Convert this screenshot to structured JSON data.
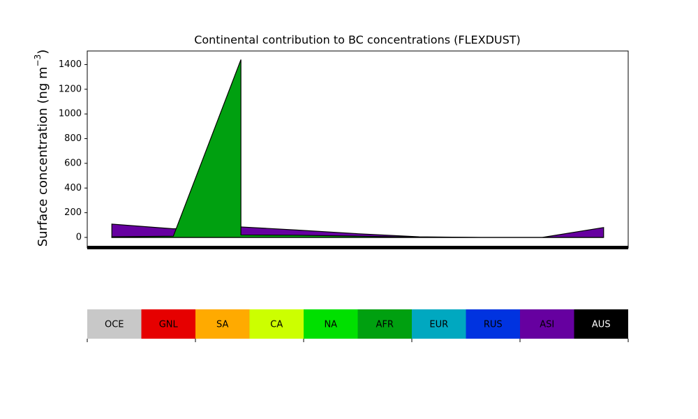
{
  "chart_data": {
    "type": "area",
    "title": "Continental contribution to BC concentrations (FLEXDUST)",
    "ylabel_parts": [
      "Surface concentration (ng m",
      "−3",
      ")"
    ],
    "ylim": [
      -85,
      1510
    ],
    "yticks": [
      0,
      200,
      400,
      600,
      800,
      1000,
      1200,
      1400
    ],
    "xlim": [
      -0.4,
      8.4
    ],
    "series": [
      {
        "name": "ASI",
        "color": "#6600a0",
        "x": [
          0,
          1,
          2.1,
          3,
          4,
          5,
          6,
          7,
          8
        ],
        "values": [
          108,
          70,
          85,
          60,
          30,
          5,
          0,
          0,
          80
        ]
      },
      {
        "name": "AFR",
        "color": "#00a010",
        "x": [
          0,
          1,
          2.1,
          2.1,
          3,
          4,
          5,
          6,
          7,
          8
        ],
        "values": [
          5,
          10,
          1440,
          20,
          18,
          10,
          2,
          0,
          0,
          0
        ]
      }
    ],
    "colorbar": [
      {
        "name": "OCE",
        "color": "#c8c8c8"
      },
      {
        "name": "GNL",
        "color": "#e60000"
      },
      {
        "name": "SA",
        "color": "#ffaa00"
      },
      {
        "name": "CA",
        "color": "#ccff00"
      },
      {
        "name": "NA",
        "color": "#00e000"
      },
      {
        "name": "AFR",
        "color": "#00a010"
      },
      {
        "name": "EUR",
        "color": "#00a8c0"
      },
      {
        "name": "RUS",
        "color": "#0033e0"
      },
      {
        "name": "ASI",
        "color": "#6600a0"
      },
      {
        "name": "AUS",
        "color": "#000000"
      }
    ]
  }
}
